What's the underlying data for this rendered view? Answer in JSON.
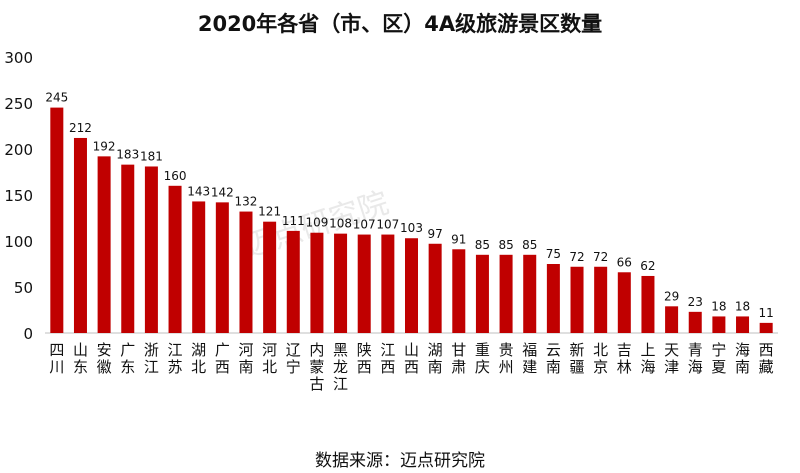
{
  "title": "2020年各省（市、区）4A级旅游景区数量",
  "source": "数据来源：迈点研究院",
  "watermark": "迈点研究院",
  "colors": {
    "bar": "#c00000",
    "axis": "#bfbfbf",
    "text": "#111111"
  },
  "chart_data": {
    "type": "bar",
    "title": "2020年各省（市、区）4A级旅游景区数量",
    "xlabel": "",
    "ylabel": "",
    "ylim": [
      0,
      300
    ],
    "yticks": [
      0,
      50,
      100,
      150,
      200,
      250,
      300
    ],
    "grid": false,
    "legend": "none",
    "categories": [
      "四川",
      "山东",
      "安徽",
      "广东",
      "浙江",
      "江苏",
      "湖北",
      "广西",
      "河南",
      "河北",
      "辽宁",
      "内蒙古",
      "黑龙江",
      "陕西",
      "江西",
      "山西",
      "湖南",
      "甘肃",
      "重庆",
      "贵州",
      "福建",
      "云南",
      "新疆",
      "北京",
      "吉林",
      "上海",
      "天津",
      "青海",
      "宁夏",
      "海南",
      "西藏"
    ],
    "values": [
      245,
      212,
      192,
      183,
      181,
      160,
      143,
      142,
      132,
      121,
      111,
      109,
      108,
      107,
      107,
      103,
      97,
      91,
      85,
      85,
      85,
      75,
      72,
      72,
      66,
      62,
      29,
      23,
      18,
      18,
      11
    ]
  }
}
